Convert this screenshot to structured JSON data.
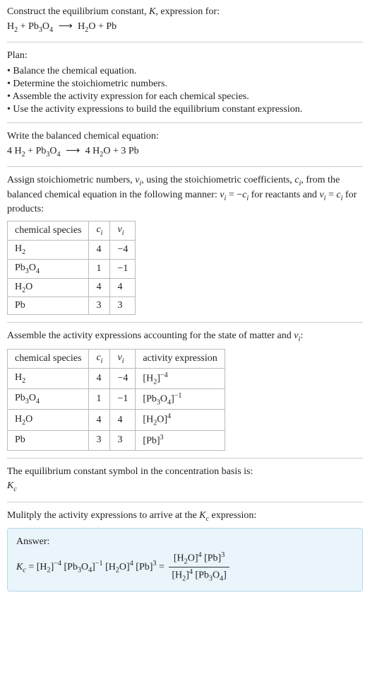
{
  "intro": {
    "line1_pre": "Construct the equilibrium constant, ",
    "K": "K",
    "line1_post": ", expression for:",
    "unbalanced_lhs_h2": "H",
    "unbalanced_lhs_h2_sub": "2",
    "plus": " + ",
    "pb3o4_pb": "Pb",
    "pb3o4_3": "3",
    "pb3o4_o": "O",
    "pb3o4_4": "4",
    "arrow": "⟶",
    "h2o_h": "H",
    "h2o_2": "2",
    "h2o_o": "O",
    "pb": "Pb"
  },
  "plan": {
    "title": "Plan:",
    "b1": "Balance the chemical equation.",
    "b2": "Determine the stoichiometric numbers.",
    "b3": "Assemble the activity expression for each chemical species.",
    "b4": "Use the activity expressions to build the equilibrium constant expression."
  },
  "balanced": {
    "title": "Write the balanced chemical equation:",
    "c_h2": "4 ",
    "c_h2o": "4 ",
    "c_pb": "3 "
  },
  "stoich": {
    "text_a": "Assign stoichiometric numbers, ",
    "nu": "ν",
    "sub_i": "i",
    "text_b": ", using the stoichiometric coefficients, ",
    "c": "c",
    "text_c": ", from the balanced chemical equation in the following manner: ",
    "eq_reactants_a": " = −",
    "text_d": " for reactants and ",
    "eq_products_a": " = ",
    "text_e": " for products:",
    "headers": {
      "species": "chemical species",
      "ci": "c",
      "nui": "ν"
    },
    "rows": [
      {
        "species_html": "H2",
        "ci": "4",
        "nui": "−4"
      },
      {
        "species_html": "Pb3O4",
        "ci": "1",
        "nui": "−1"
      },
      {
        "species_html": "H2O",
        "ci": "4",
        "nui": "4"
      },
      {
        "species_html": "Pb",
        "ci": "3",
        "nui": "3"
      }
    ]
  },
  "activity": {
    "title_a": "Assemble the activity expressions accounting for the state of matter and ",
    "title_b": ":",
    "headers": {
      "species": "chemical species",
      "ci": "c",
      "nui": "ν",
      "act": "activity expression"
    },
    "rows": [
      {
        "ci": "4",
        "nui": "−4",
        "exp": "−4"
      },
      {
        "ci": "1",
        "nui": "−1",
        "exp": "−1"
      },
      {
        "ci": "4",
        "nui": "4",
        "exp": "4"
      },
      {
        "ci": "3",
        "nui": "3",
        "exp": "3"
      }
    ]
  },
  "symbol": {
    "line": "The equilibrium constant symbol in the concentration basis is:",
    "Kc_K": "K",
    "Kc_c": "c"
  },
  "final": {
    "line_a": "Mulitply the activity expressions to arrive at the ",
    "line_b": " expression:",
    "answer_label": "Answer:",
    "eq_eq": " = ",
    "exp_h2_neg": "−4",
    "exp_pb3o4_neg": "−1",
    "exp_h2o": "4",
    "exp_pb": "3",
    "exp_h2_pos": "4"
  },
  "colors": {
    "answer_bg": "#e9f4fb",
    "answer_border": "#b7d7ea"
  }
}
